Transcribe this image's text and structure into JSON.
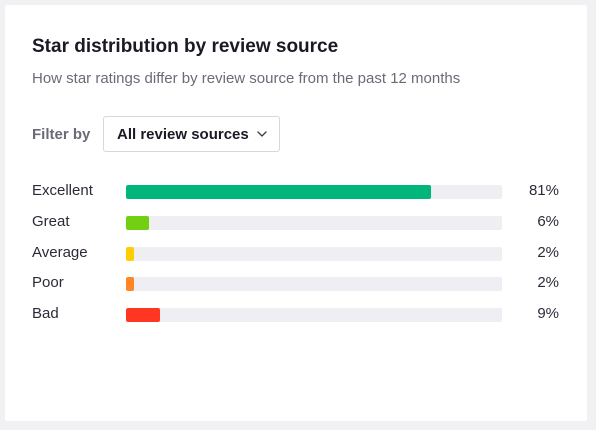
{
  "card": {
    "title": "Star distribution by review source",
    "subtitle": "How star ratings differ by review source from the past 12 months"
  },
  "filter": {
    "label": "Filter by",
    "selected": "All review sources",
    "icon": "chevron-down-icon"
  },
  "ratings": [
    {
      "label": "Excellent",
      "percent_text": "81%",
      "percent": 81,
      "color": "#00b67a"
    },
    {
      "label": "Great",
      "percent_text": "6%",
      "percent": 6,
      "color": "#73cf11"
    },
    {
      "label": "Average",
      "percent_text": "2%",
      "percent": 2,
      "color": "#ffce00"
    },
    {
      "label": "Poor",
      "percent_text": "2%",
      "percent": 2,
      "color": "#ff8622"
    },
    {
      "label": "Bad",
      "percent_text": "9%",
      "percent": 9,
      "color": "#ff3722"
    }
  ],
  "colors": {
    "track": "#efeff3"
  }
}
